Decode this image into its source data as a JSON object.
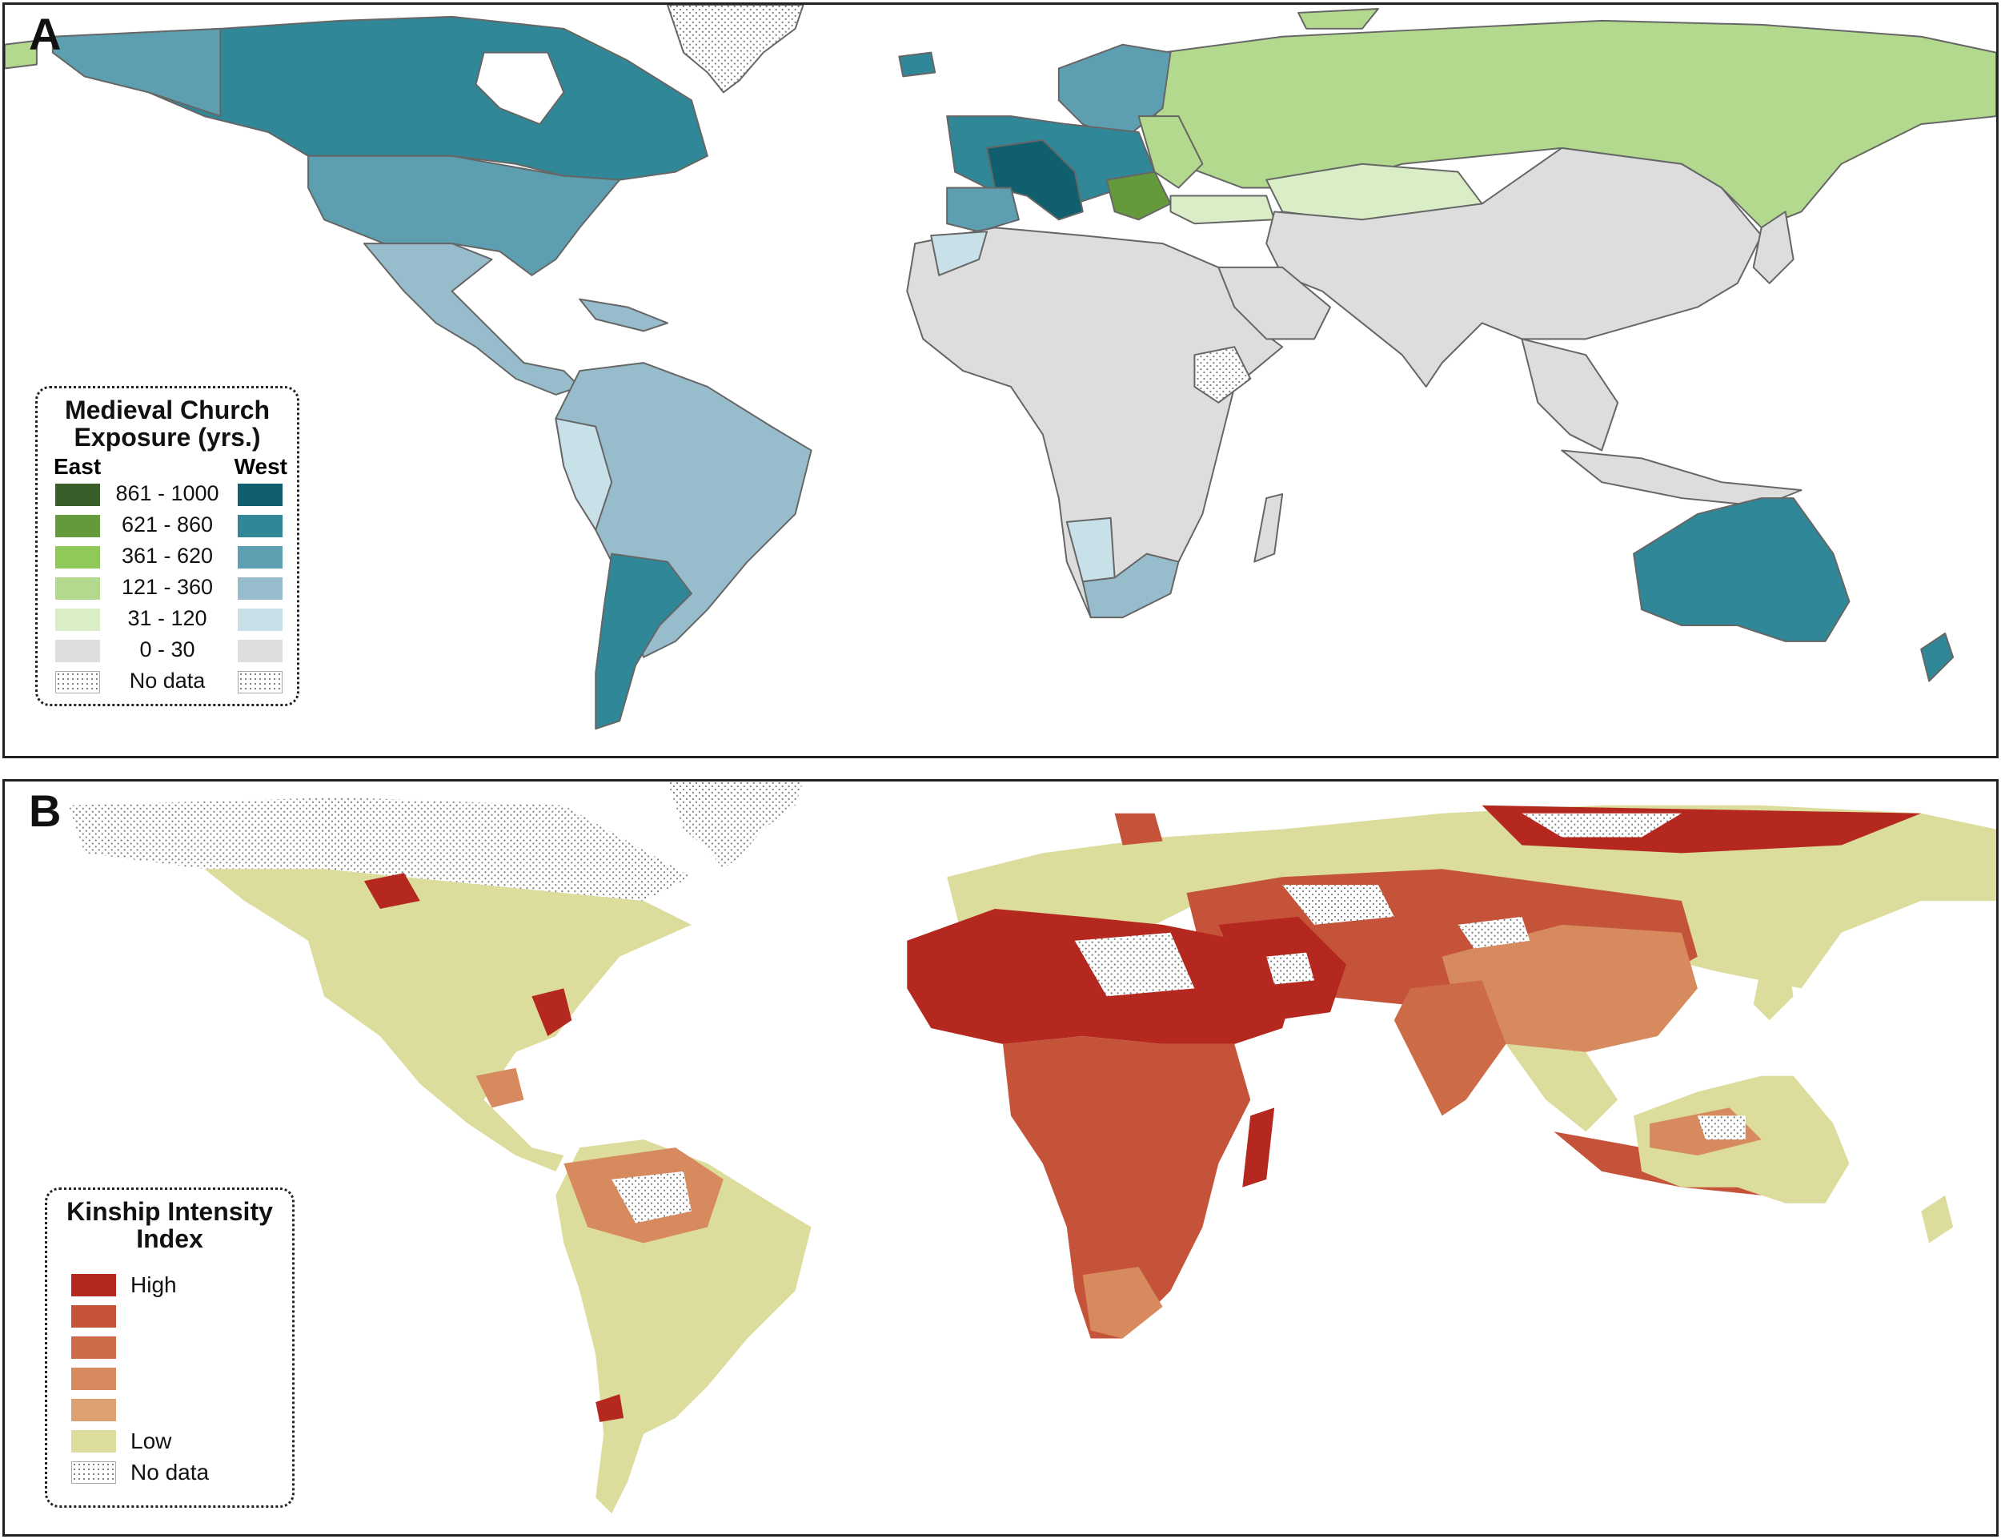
{
  "panel_a": {
    "letter": "A",
    "legend": {
      "title_line1": "Medieval Church",
      "title_line2": "Exposure (yrs.)",
      "east_label": "East",
      "west_label": "West",
      "rows": [
        {
          "label": "861 - 1000",
          "east_color": "#3a5e2a",
          "west_color": "#0f5f6e"
        },
        {
          "label": "621 - 860",
          "east_color": "#659a3c",
          "west_color": "#2f8798"
        },
        {
          "label": "361 - 620",
          "east_color": "#8ec95a",
          "west_color": "#5d9fb0"
        },
        {
          "label": "121 - 360",
          "east_color": "#b3d98f",
          "west_color": "#97bdcc"
        },
        {
          "label": "31 - 120",
          "east_color": "#d9edc6",
          "west_color": "#c8e0e8"
        },
        {
          "label": "0 - 30",
          "east_color": "#dddddd",
          "west_color": "#dddddd"
        },
        {
          "label": "No data",
          "east_color": "nodata",
          "west_color": "nodata"
        }
      ]
    },
    "colors": {
      "canada_us_west": "#2f8798",
      "us": "#5d9fb0",
      "latin": "#97bdcc",
      "andes": "#c8e0e8",
      "argentina": "#2f8798",
      "west_europe_core": "#0f5f6e",
      "west_europe": "#2f8798",
      "iberia": "#5d9fb0",
      "scandinavia": "#5d9fb0",
      "russia": "#b3d98f",
      "kazakh": "#d9edc6",
      "balkans": "#659a3c",
      "grey": "#dddddd",
      "australia": "#2f8798",
      "south_africa": "#97bdcc",
      "namibia": "#c8e0e8"
    }
  },
  "panel_b": {
    "letter": "B",
    "legend": {
      "title_line1": "Kinship Intensity",
      "title_line2": "Index",
      "rows": [
        {
          "label": "High",
          "color": "#b5281f"
        },
        {
          "label": "",
          "color": "#c5533a"
        },
        {
          "label": "",
          "color": "#cd6a48"
        },
        {
          "label": "",
          "color": "#d68a5e"
        },
        {
          "label": "",
          "color": "#dca274"
        },
        {
          "label": "Low",
          "color": "#dcdc9c"
        },
        {
          "label": "No data",
          "color": "nodata"
        }
      ]
    }
  }
}
